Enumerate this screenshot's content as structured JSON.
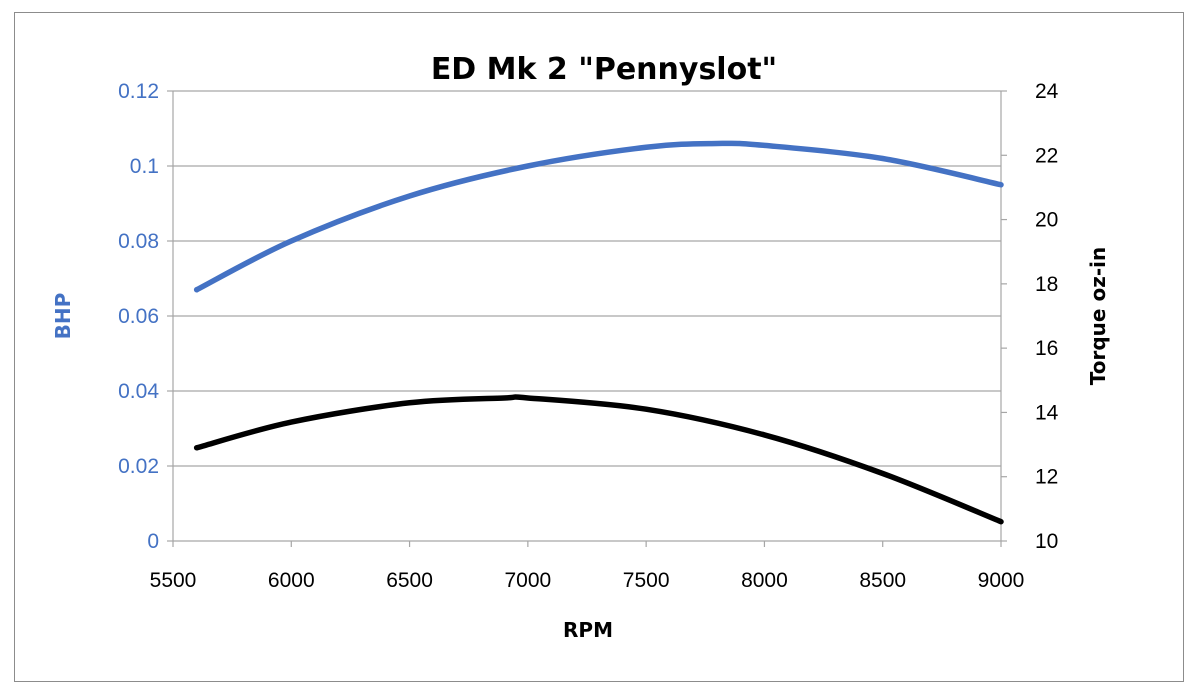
{
  "chart_data": {
    "type": "line",
    "title": "ED Mk 2 \"Pennyslot\"",
    "xlabel": "RPM",
    "ylabel_left": "BHP",
    "ylabel_right": "Torque oz-in",
    "xlim": [
      5500,
      9000
    ],
    "ylim_left": [
      0,
      0.12
    ],
    "ylim_right": [
      10,
      24
    ],
    "x_ticks": [
      "5500",
      "6000",
      "6500",
      "7000",
      "7500",
      "8000",
      "8500",
      "9000"
    ],
    "y_ticks_left": [
      "0",
      "0.02",
      "0.04",
      "0.06",
      "0.08",
      "0.1",
      "0.12"
    ],
    "y_ticks_right": [
      "10",
      "12",
      "14",
      "16",
      "18",
      "20",
      "22",
      "24"
    ],
    "grid": "horizontal",
    "colors": {
      "bhp": "#4472C4",
      "torque": "#000000",
      "grid": "#a6a6a6",
      "left_axis_text": "#4472C4"
    },
    "series": [
      {
        "name": "BHP",
        "axis": "left",
        "x": [
          5600,
          6000,
          6500,
          7000,
          7500,
          7800,
          8000,
          8500,
          9000
        ],
        "y": [
          0.067,
          0.08,
          0.092,
          0.1,
          0.105,
          0.106,
          0.1055,
          0.102,
          0.095
        ]
      },
      {
        "name": "Torque",
        "axis": "right",
        "x": [
          5600,
          6000,
          6500,
          6900,
          7000,
          7500,
          8000,
          8500,
          9000
        ],
        "y": [
          12.9,
          13.7,
          14.3,
          14.45,
          14.45,
          14.1,
          13.3,
          12.1,
          10.6
        ]
      }
    ]
  }
}
